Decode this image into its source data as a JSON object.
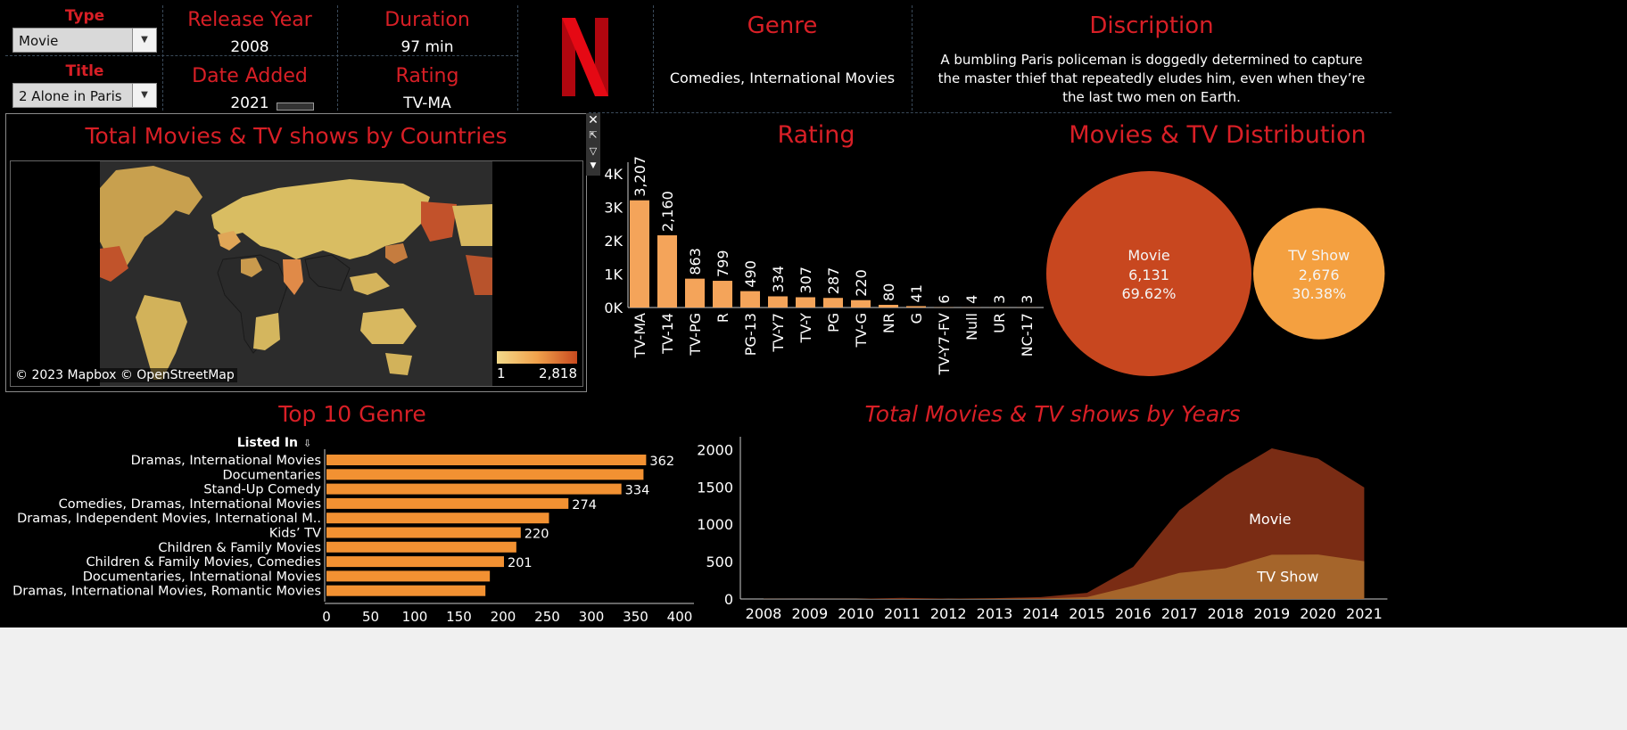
{
  "filters": {
    "type_label": "Type",
    "type_value": "Movie",
    "title_label": "Title",
    "title_value": "2 Alone in Paris"
  },
  "details": {
    "release_year_label": "Release Year",
    "release_year": "2008",
    "duration_label": "Duration",
    "duration": "97 min",
    "date_added_label": "Date Added",
    "date_added": "2021",
    "rating_label": "Rating",
    "rating": "TV-MA",
    "genre_label": "Genre",
    "genre": "Comedies, International Movies",
    "description_label": "Discription",
    "description": "A bumbling Paris policeman is doggedly determined to capture the master thief that repeatedly eludes him, even when they’re the last two men on Earth."
  },
  "logo": {
    "letter": "N",
    "color": "#d81f26"
  },
  "colors": {
    "accent": "#d81f26",
    "bar": "#f4a45a",
    "bar_dark": "#f29132",
    "movie": "#c8471f",
    "tvshow": "#f4a040",
    "area_movie": "#7a2c14",
    "area_tv": "#a5652b"
  },
  "map": {
    "title": "Total Movies & TV shows by Countries",
    "attribution": "© 2023 Mapbox © OpenStreetMap",
    "legend_min": "1",
    "legend_max": "2,818"
  },
  "rating_chart": {
    "title": "Rating",
    "chart_data": {
      "type": "bar",
      "categories": [
        "TV-MA",
        "TV-14",
        "TV-PG",
        "R",
        "PG-13",
        "TV-Y7",
        "TV-Y",
        "PG",
        "TV-G",
        "NR",
        "G",
        "TV-Y7-FV",
        "Null",
        "UR",
        "NC-17"
      ],
      "values": [
        3207,
        2160,
        863,
        799,
        490,
        334,
        307,
        287,
        220,
        80,
        41,
        6,
        4,
        3,
        3
      ],
      "labels": [
        "3,207",
        "2,160",
        "863",
        "799",
        "490",
        "334",
        "307",
        "287",
        "220",
        "80",
        "41",
        "6",
        "4",
        "3",
        "3"
      ],
      "yticks": [
        "0K",
        "1K",
        "2K",
        "3K",
        "4K"
      ],
      "ylim": [
        0,
        4000
      ]
    }
  },
  "distribution": {
    "title": "Movies & TV Distribution",
    "chart_data": {
      "type": "bubble",
      "items": [
        {
          "name": "Movie",
          "value": "6,131",
          "pct": "69.62%",
          "count": 6131
        },
        {
          "name": "TV Show",
          "value": "2,676",
          "pct": "30.38%",
          "count": 2676
        }
      ]
    }
  },
  "genre_chart": {
    "title": "Top 10 Genre",
    "header": "Listed In",
    "chart_data": {
      "type": "bar",
      "categories": [
        "Dramas, International Movies",
        "Documentaries",
        "Stand-Up Comedy",
        "Comedies, Dramas, International Movies",
        "Dramas, Independent Movies, International M..",
        "Kids’ TV",
        "Children & Family Movies",
        "Children & Family Movies, Comedies",
        "Documentaries, International Movies",
        "Dramas, International Movies, Romantic Movies"
      ],
      "values": [
        362,
        359,
        334,
        274,
        252,
        220,
        215,
        201,
        185,
        180
      ],
      "labels": [
        "362",
        "",
        "334",
        "274",
        "",
        "220",
        "",
        "201",
        "",
        ""
      ],
      "xticks": [
        "0",
        "50",
        "100",
        "150",
        "200",
        "250",
        "300",
        "350",
        "400"
      ],
      "xlim": [
        0,
        400
      ]
    }
  },
  "years_chart": {
    "title": "Total Movies & TV shows by Years",
    "chart_data": {
      "type": "area",
      "x": [
        "2008",
        "2009",
        "2010",
        "2011",
        "2012",
        "2013",
        "2014",
        "2015",
        "2016",
        "2017",
        "2018",
        "2019",
        "2020",
        "2021"
      ],
      "series": [
        {
          "name": "TV Show",
          "values": [
            1,
            0,
            1,
            2,
            1,
            5,
            6,
            26,
            176,
            349,
            412,
            592,
            595,
            505
          ]
        },
        {
          "name": "Movie",
          "values": [
            1,
            2,
            1,
            13,
            3,
            6,
            19,
            56,
            253,
            839,
            1237,
            1424,
            1284,
            988
          ]
        }
      ],
      "yticks": [
        "0",
        "500",
        "1000",
        "1500",
        "2000"
      ],
      "ylim": [
        0,
        2100
      ]
    }
  }
}
